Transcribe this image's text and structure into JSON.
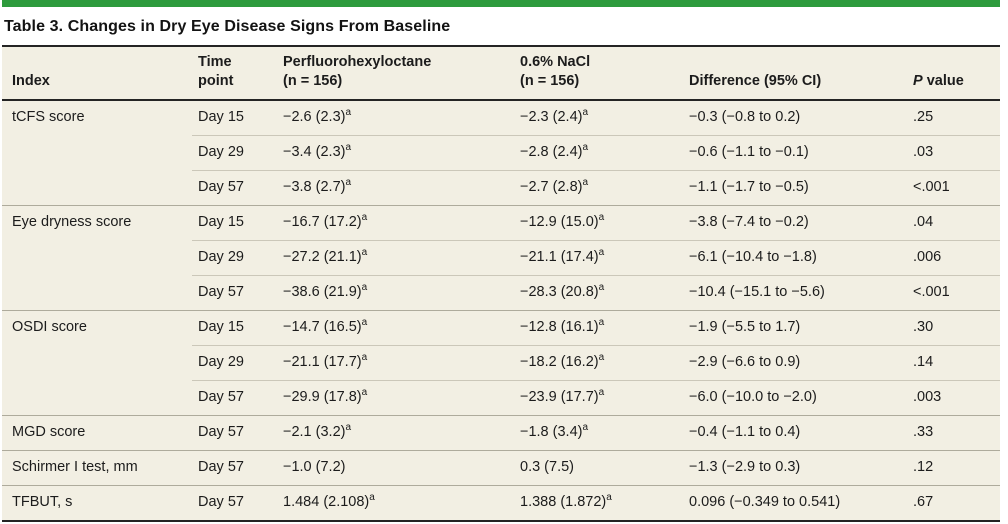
{
  "accent_color": "#2e9b3d",
  "table_background_color": "#f2efe3",
  "title": "Table 3. Changes in Dry Eye Disease Signs From Baseline",
  "columns": [
    {
      "line1": "Index",
      "line2": ""
    },
    {
      "line1": "Time",
      "line2": "point"
    },
    {
      "line1": "Perfluorohexyloctane",
      "line2": "(n = 156)"
    },
    {
      "line1": "0.6% NaCl",
      "line2": "(n = 156)"
    },
    {
      "line1": "Difference (95% CI)",
      "line2": ""
    },
    {
      "label": "P value",
      "italic_part": "P",
      "rest": " value"
    }
  ],
  "footnote_marker": "a",
  "groups": [
    {
      "index": "tCFS score",
      "rows": [
        {
          "time": "Day 15",
          "drug": {
            "v": "−2.6 (2.3)",
            "sup": "a"
          },
          "nacl": {
            "v": "−2.3 (2.4)",
            "sup": "a"
          },
          "diff": "−0.3 (−0.8 to 0.2)",
          "p": ".25"
        },
        {
          "time": "Day 29",
          "drug": {
            "v": "−3.4 (2.3)",
            "sup": "a"
          },
          "nacl": {
            "v": "−2.8 (2.4)",
            "sup": "a"
          },
          "diff": "−0.6 (−1.1 to −0.1)",
          "p": ".03"
        },
        {
          "time": "Day 57",
          "drug": {
            "v": "−3.8 (2.7)",
            "sup": "a"
          },
          "nacl": {
            "v": "−2.7 (2.8)",
            "sup": "a"
          },
          "diff": "−1.1 (−1.7 to −0.5)",
          "p": "<.001"
        }
      ]
    },
    {
      "index": "Eye dryness score",
      "rows": [
        {
          "time": "Day 15",
          "drug": {
            "v": "−16.7 (17.2)",
            "sup": "a"
          },
          "nacl": {
            "v": "−12.9 (15.0)",
            "sup": "a"
          },
          "diff": "−3.8 (−7.4 to −0.2)",
          "p": ".04"
        },
        {
          "time": "Day 29",
          "drug": {
            "v": "−27.2 (21.1)",
            "sup": "a"
          },
          "nacl": {
            "v": "−21.1 (17.4)",
            "sup": "a"
          },
          "diff": "−6.1 (−10.4 to −1.8)",
          "p": ".006"
        },
        {
          "time": "Day 57",
          "drug": {
            "v": "−38.6 (21.9)",
            "sup": "a"
          },
          "nacl": {
            "v": "−28.3 (20.8)",
            "sup": "a"
          },
          "diff": "−10.4 (−15.1 to −5.6)",
          "p": "<.001"
        }
      ]
    },
    {
      "index": "OSDI score",
      "rows": [
        {
          "time": "Day 15",
          "drug": {
            "v": "−14.7 (16.5)",
            "sup": "a"
          },
          "nacl": {
            "v": "−12.8 (16.1)",
            "sup": "a"
          },
          "diff": "−1.9 (−5.5 to 1.7)",
          "p": ".30"
        },
        {
          "time": "Day 29",
          "drug": {
            "v": "−21.1 (17.7)",
            "sup": "a"
          },
          "nacl": {
            "v": "−18.2 (16.2)",
            "sup": "a"
          },
          "diff": "−2.9 (−6.6 to 0.9)",
          "p": ".14"
        },
        {
          "time": "Day 57",
          "drug": {
            "v": "−29.9 (17.8)",
            "sup": "a"
          },
          "nacl": {
            "v": "−23.9 (17.7)",
            "sup": "a"
          },
          "diff": "−6.0 (−10.0 to −2.0)",
          "p": ".003"
        }
      ]
    },
    {
      "index": "MGD score",
      "rows": [
        {
          "time": "Day 57",
          "drug": {
            "v": "−2.1 (3.2)",
            "sup": "a"
          },
          "nacl": {
            "v": "−1.8 (3.4)",
            "sup": "a"
          },
          "diff": "−0.4 (−1.1 to 0.4)",
          "p": ".33"
        }
      ]
    },
    {
      "index": "Schirmer I test, mm",
      "rows": [
        {
          "time": "Day 57",
          "drug": {
            "v": "−1.0 (7.2)",
            "sup": ""
          },
          "nacl": {
            "v": "0.3 (7.5)",
            "sup": ""
          },
          "diff": "−1.3 (−2.9 to 0.3)",
          "p": ".12"
        }
      ]
    },
    {
      "index": "TFBUT, s",
      "rows": [
        {
          "time": "Day 57",
          "drug": {
            "v": "1.484 (2.108)",
            "sup": "a"
          },
          "nacl": {
            "v": "1.388 (1.872)",
            "sup": "a"
          },
          "diff": "0.096 (−0.349 to 0.541)",
          "p": ".67"
        }
      ]
    }
  ]
}
